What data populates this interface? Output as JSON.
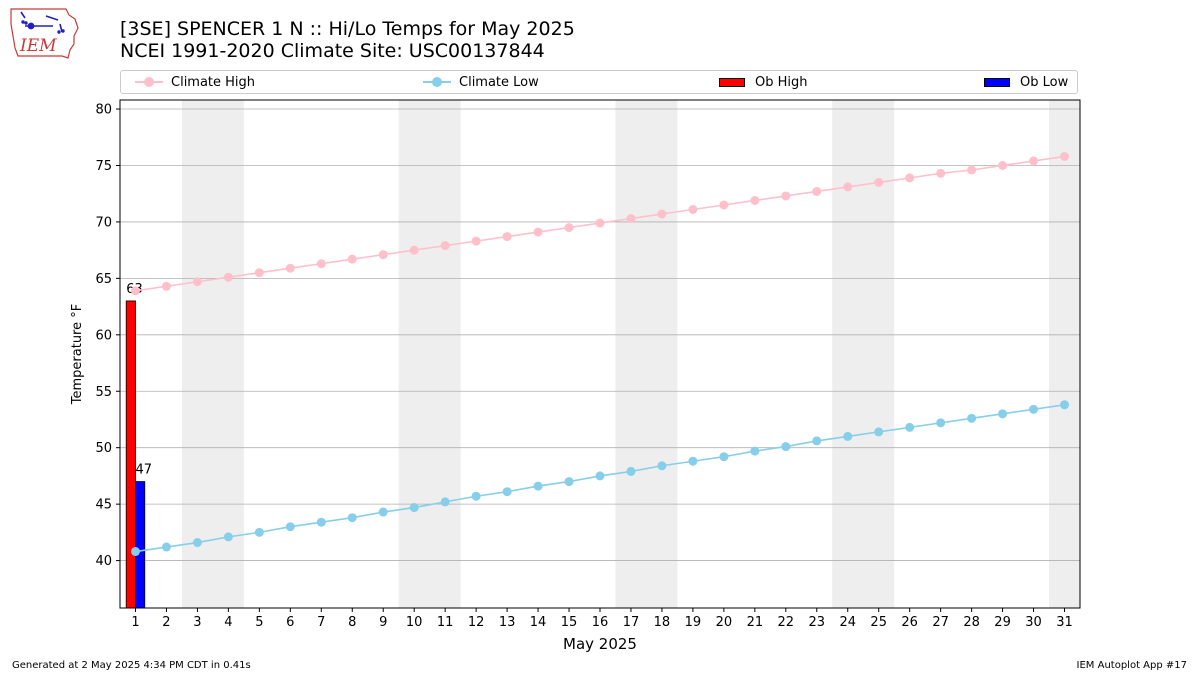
{
  "header": {
    "title_line1": "[3SE] SPENCER 1 N :: Hi/Lo Temps for May 2025",
    "title_line2": "NCEI 1991-2020 Climate Site: USC00137844"
  },
  "logo": {
    "text": "IEM",
    "icon": "iowa-state-outline-icon"
  },
  "footer": {
    "left": "Generated at 2 May 2025 4:34 PM CDT in 0.41s",
    "right": "IEM Autoplot App #17"
  },
  "colors": {
    "climate_high": "#ffc0cb",
    "climate_low": "#87ceeb",
    "ob_high": "#ff0000",
    "ob_low": "#0000ff",
    "weekend_shade": "#eeeeee",
    "grid": "#b0b0b0"
  },
  "chart_data": {
    "type": "bar",
    "xlabel": "May 2025",
    "ylabel": "Temperature °F",
    "xlim": [
      0.5,
      31.5
    ],
    "ylim": [
      35.8,
      80.8
    ],
    "yticks": [
      40,
      45,
      50,
      55,
      60,
      65,
      70,
      75,
      80
    ],
    "grid": "y",
    "legend_placement": "top",
    "x": [
      1,
      2,
      3,
      4,
      5,
      6,
      7,
      8,
      9,
      10,
      11,
      12,
      13,
      14,
      15,
      16,
      17,
      18,
      19,
      20,
      21,
      22,
      23,
      24,
      25,
      26,
      27,
      28,
      29,
      30,
      31
    ],
    "shaded_x_ranges": [
      [
        2.5,
        4.5
      ],
      [
        9.5,
        11.5
      ],
      [
        16.5,
        18.5
      ],
      [
        23.5,
        25.5
      ],
      [
        30.5,
        31.5
      ]
    ],
    "series": [
      {
        "name": "Climate High",
        "type": "line",
        "values": [
          63.9,
          64.3,
          64.7,
          65.1,
          65.5,
          65.9,
          66.3,
          66.7,
          67.1,
          67.5,
          67.9,
          68.3,
          68.7,
          69.1,
          69.5,
          69.9,
          70.3,
          70.7,
          71.1,
          71.5,
          71.9,
          72.3,
          72.7,
          73.1,
          73.5,
          73.9,
          74.3,
          74.6,
          75.0,
          75.4,
          75.8
        ]
      },
      {
        "name": "Climate Low",
        "type": "line",
        "values": [
          40.8,
          41.2,
          41.6,
          42.1,
          42.5,
          43.0,
          43.4,
          43.8,
          44.3,
          44.7,
          45.2,
          45.7,
          46.1,
          46.6,
          47.0,
          47.5,
          47.9,
          48.4,
          48.8,
          49.2,
          49.7,
          50.1,
          50.6,
          51.0,
          51.4,
          51.8,
          52.2,
          52.6,
          53.0,
          53.4,
          53.8
        ]
      },
      {
        "name": "Ob High",
        "type": "bar",
        "x": [
          1
        ],
        "values": [
          63
        ],
        "labels": [
          "63"
        ]
      },
      {
        "name": "Ob Low",
        "type": "bar",
        "x": [
          1
        ],
        "values": [
          47
        ],
        "labels": [
          "47"
        ]
      }
    ]
  }
}
